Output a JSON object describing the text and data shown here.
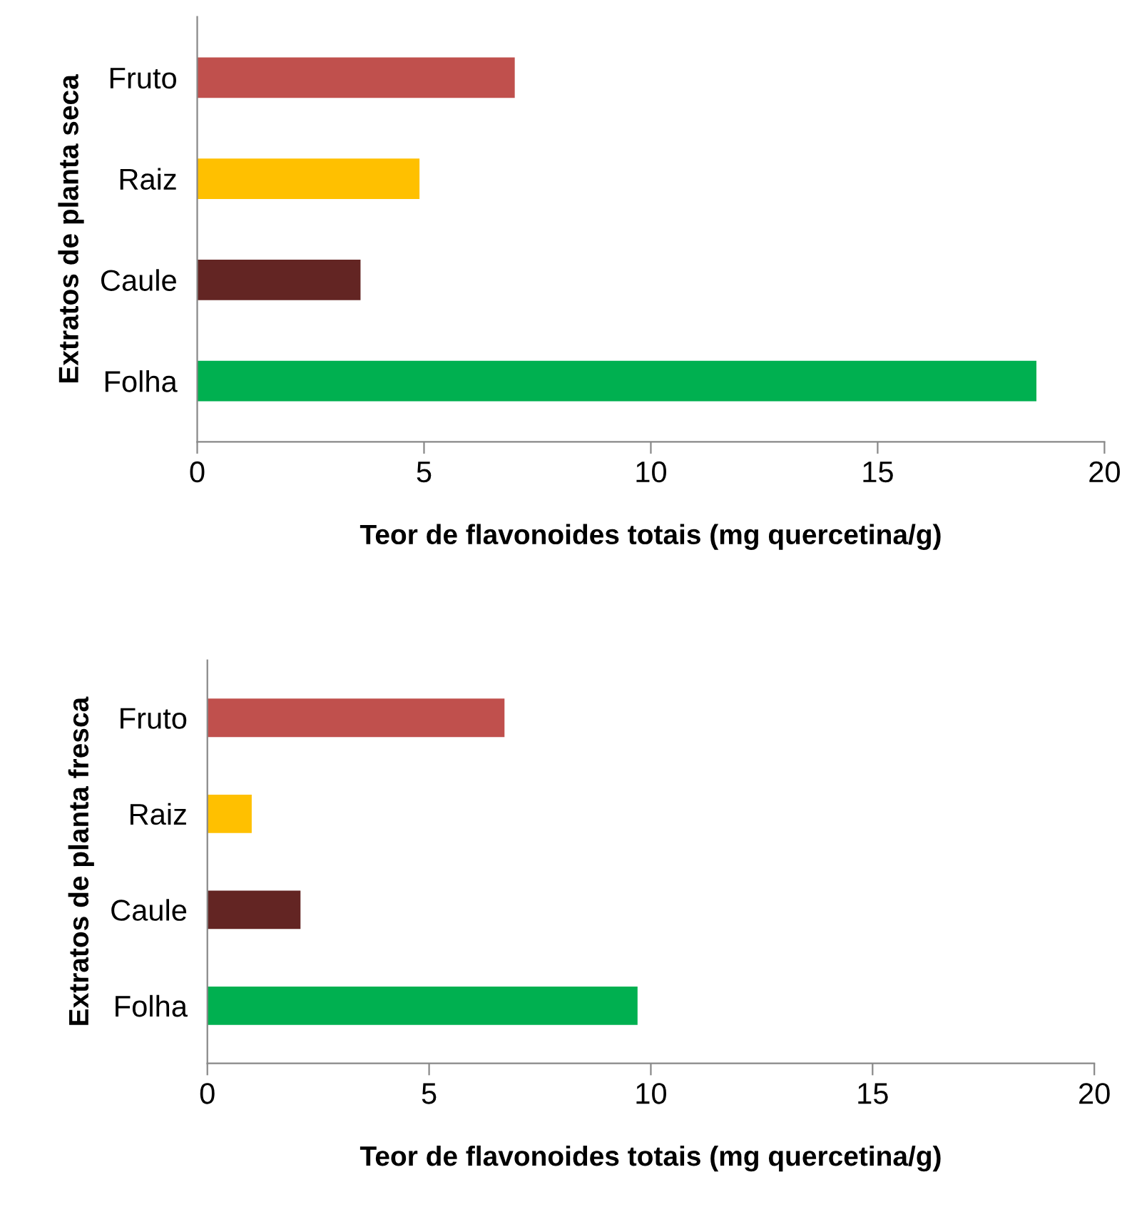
{
  "chart_data": [
    {
      "type": "bar",
      "orientation": "horizontal",
      "categories": [
        "Fruto",
        "Raiz",
        "Caule",
        "Folha"
      ],
      "values": [
        7.0,
        4.9,
        3.6,
        18.5
      ],
      "colors": [
        "#c0504d",
        "#ffc000",
        "#632523",
        "#00b050"
      ],
      "xlim": [
        0,
        20
      ],
      "xticks": [
        0,
        5,
        10,
        15,
        20
      ],
      "xlabel": "Teor de flavonoides totais (mg quercetina/g)",
      "ylabel": "Extratos de planta seca",
      "grid": false,
      "legend": false
    },
    {
      "type": "bar",
      "orientation": "horizontal",
      "categories": [
        "Fruto",
        "Raiz",
        "Caule",
        "Folha"
      ],
      "values": [
        6.7,
        1.0,
        2.1,
        9.7
      ],
      "colors": [
        "#c0504d",
        "#ffc000",
        "#632523",
        "#00b050"
      ],
      "xlim": [
        0,
        20
      ],
      "xticks": [
        0,
        5,
        10,
        15,
        20
      ],
      "xlabel": "Teor de flavonoides totais (mg quercetina/g)",
      "ylabel": "Extratos de planta fresca",
      "grid": false,
      "legend": false
    }
  ]
}
